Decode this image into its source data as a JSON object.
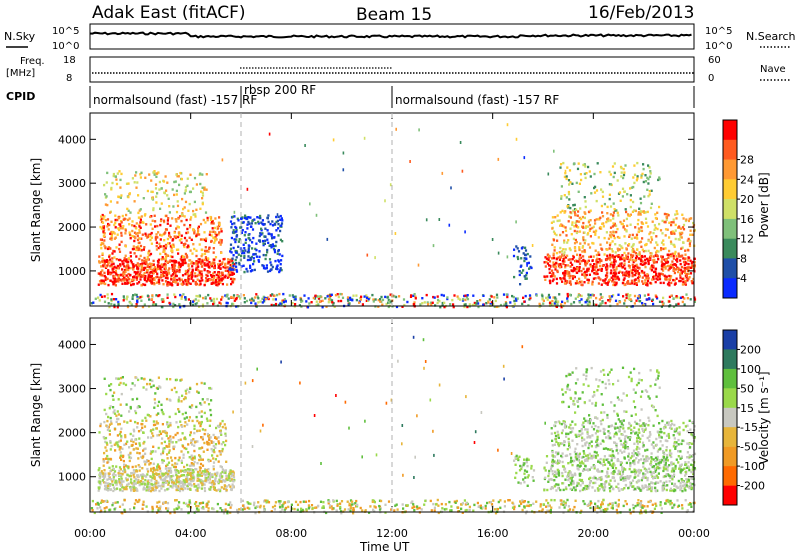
{
  "header": {
    "station": "Adak East (fitACF)",
    "beam": "Beam 15",
    "date": "16/Feb/2013"
  },
  "top_panels": {
    "nsky_label": "N.Sky",
    "nsearch_label": "N.Search",
    "count_left_ticks": [
      "10^5",
      "10^0"
    ],
    "count_right_ticks": [
      "10^5",
      "10^0"
    ],
    "freq_label_1": "Freq.",
    "freq_label_2": "[MHz]",
    "freq_ticks": [
      "18",
      "8"
    ],
    "nave_label": "Nave",
    "nave_ticks": [
      "60",
      "0"
    ],
    "cpid_label": "CPID"
  },
  "colors": {
    "power_scale": [
      "#0a2bff",
      "#1f4fa8",
      "#3a8a5c",
      "#7fc07a",
      "#cfe067",
      "#ffcc33",
      "#ff9933",
      "#ff5a1f",
      "#ff0000"
    ],
    "velocity_scale": [
      "#1a3fa6",
      "#2e7a5e",
      "#5fbf3d",
      "#9ad94a",
      "#c8c8c0",
      "#e7b53a",
      "#f09a24",
      "#ff6a00",
      "#ff0000"
    ]
  },
  "chart_data": [
    {
      "type": "scatter",
      "name": "cpid",
      "segments": [
        {
          "start": "00:00",
          "end": "06:00",
          "label": "normalsound (fast) -157 RF"
        },
        {
          "start": "06:00",
          "end": "12:00",
          "label": "rbsp 200 RF"
        },
        {
          "start": "12:00",
          "end": "24:00",
          "label": "normalsound (fast) -157 RF"
        }
      ]
    },
    {
      "type": "heatmap",
      "name": "power",
      "xlabel": "Time UT",
      "ylabel": "Slant Range [km]",
      "colorbar_label": "Power [dB]",
      "x_ticks": [
        "00:00",
        "04:00",
        "08:00",
        "12:00",
        "16:00",
        "20:00",
        "00:00"
      ],
      "y_ticks": [
        1000,
        2000,
        3000,
        4000
      ],
      "ylim": [
        200,
        4600
      ],
      "colorbar_ticks": [
        4,
        8,
        12,
        16,
        20,
        24,
        28
      ]
    },
    {
      "type": "heatmap",
      "name": "velocity",
      "xlabel": "Time UT",
      "ylabel": "Slant Range [km]",
      "colorbar_label": "Velocity [m s⁻¹]",
      "x_ticks": [
        "00:00",
        "04:00",
        "08:00",
        "12:00",
        "16:00",
        "20:00",
        "00:00"
      ],
      "y_ticks": [
        1000,
        2000,
        3000,
        4000
      ],
      "ylim": [
        200,
        4600
      ],
      "colorbar_ticks": [
        200,
        100,
        50,
        15,
        -15,
        -50,
        -100,
        -200
      ]
    }
  ]
}
